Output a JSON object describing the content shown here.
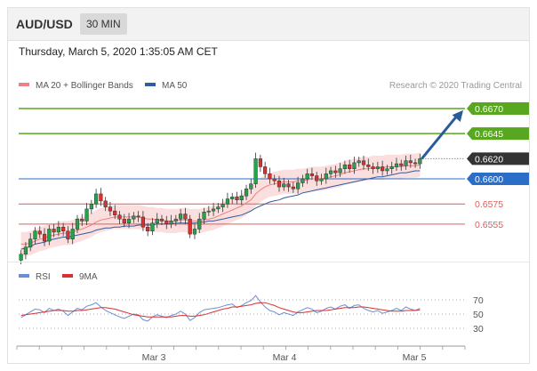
{
  "header": {
    "symbol": "AUD/USD",
    "timeframe": "30 MIN",
    "datetime": "Thursday, March 5, 2020 1:35:05 AM CET"
  },
  "legend": {
    "items": [
      {
        "label": "MA 20 + Bollinger Bands",
        "color": "#f08080"
      },
      {
        "label": "MA 50",
        "color": "#2f5c9e"
      }
    ],
    "credit": "Research © 2020 Trading Central"
  },
  "colors": {
    "up": "#27a14b",
    "down": "#d93030",
    "wick": "#333333",
    "resistance": "#59a620",
    "support": "#e45a5a",
    "pivot": "#2a6ec7",
    "current": "#333333",
    "band": "#fbdfdf",
    "ma20": "#f08080",
    "ma50": "#2f5c9e",
    "arrow": "#2a5c9a",
    "rsi": "#6a8fd6",
    "rsi_ma": "#d93030"
  },
  "chart_data": [
    {
      "type": "candlestick",
      "symbol": "AUD/USD",
      "timeframe": "30 MIN",
      "ylim": [
        0.6515,
        0.6685
      ],
      "x_ticks": [
        "Mar 3",
        "Mar 4",
        "Mar 5"
      ],
      "price_levels": [
        {
          "value": 0.667,
          "label": "0.6670",
          "kind": "resistance"
        },
        {
          "value": 0.6645,
          "label": "0.6645",
          "kind": "resistance"
        },
        {
          "value": 0.662,
          "label": "0.6620",
          "kind": "current"
        },
        {
          "value": 0.66,
          "label": "0.6600",
          "kind": "pivot"
        },
        {
          "value": 0.6575,
          "label": "0.6575",
          "kind": "support"
        },
        {
          "value": 0.6555,
          "label": "0.6555",
          "kind": "support"
        }
      ],
      "candles_close": [
        0.6525,
        0.6532,
        0.654,
        0.6548,
        0.6545,
        0.6538,
        0.655,
        0.6547,
        0.6552,
        0.6548,
        0.654,
        0.655,
        0.656,
        0.6558,
        0.657,
        0.6575,
        0.6585,
        0.6578,
        0.6572,
        0.6568,
        0.6564,
        0.656,
        0.6556,
        0.656,
        0.6563,
        0.6562,
        0.6552,
        0.6548,
        0.6556,
        0.656,
        0.6558,
        0.6555,
        0.6558,
        0.656,
        0.6565,
        0.656,
        0.6545,
        0.655,
        0.656,
        0.6567,
        0.6568,
        0.657,
        0.6572,
        0.6575,
        0.658,
        0.6582,
        0.6579,
        0.6583,
        0.659,
        0.6595,
        0.662,
        0.6612,
        0.6605,
        0.66,
        0.6598,
        0.6592,
        0.6595,
        0.6592,
        0.659,
        0.6596,
        0.66,
        0.6605,
        0.6603,
        0.6598,
        0.66,
        0.6605,
        0.6608,
        0.6606,
        0.661,
        0.6614,
        0.661,
        0.6616,
        0.6618,
        0.6614,
        0.6612,
        0.661,
        0.6612,
        0.6608,
        0.661,
        0.6612,
        0.6615,
        0.6613,
        0.6618,
        0.6616,
        0.6615,
        0.662
      ],
      "ma20": [
        0.6535,
        0.6535,
        0.6536,
        0.6538,
        0.654,
        0.6541,
        0.6543,
        0.6544,
        0.6545,
        0.6546,
        0.6546,
        0.6547,
        0.6549,
        0.655,
        0.6552,
        0.6554,
        0.6557,
        0.6559,
        0.656,
        0.6561,
        0.6562,
        0.6562,
        0.6562,
        0.6562,
        0.6562,
        0.6562,
        0.6561,
        0.656,
        0.656,
        0.6559,
        0.6559,
        0.6558,
        0.6558,
        0.6558,
        0.6559,
        0.6559,
        0.6558,
        0.6558,
        0.6558,
        0.6559,
        0.656,
        0.6561,
        0.6563,
        0.6565,
        0.6567,
        0.6569,
        0.6571,
        0.6573,
        0.6576,
        0.6579,
        0.6585,
        0.6589,
        0.6592,
        0.6594,
        0.6595,
        0.6596,
        0.6597,
        0.6597,
        0.6597,
        0.6598,
        0.6598,
        0.6599,
        0.66,
        0.66,
        0.66,
        0.6601,
        0.6602,
        0.6603,
        0.6604,
        0.6606,
        0.6607,
        0.6608,
        0.6609,
        0.661,
        0.661,
        0.6611,
        0.6611,
        0.6611,
        0.6612,
        0.6612,
        0.6612,
        0.6612,
        0.6613,
        0.6613,
        0.6613,
        0.6614
      ],
      "ma50": [
        0.653,
        0.6531,
        0.6533,
        0.6535,
        0.6536,
        0.6537,
        0.6539,
        0.654,
        0.6541,
        0.6542,
        0.6542,
        0.6543,
        0.6544,
        0.6545,
        0.6546,
        0.6547,
        0.6549,
        0.655,
        0.6551,
        0.6551,
        0.6552,
        0.6552,
        0.6553,
        0.6553,
        0.6553,
        0.6554,
        0.6554,
        0.6554,
        0.6554,
        0.6555,
        0.6555,
        0.6555,
        0.6555,
        0.6556,
        0.6556,
        0.6556,
        0.6556,
        0.6556,
        0.6557,
        0.6557,
        0.6558,
        0.6558,
        0.6559,
        0.656,
        0.6561,
        0.6562,
        0.6563,
        0.6564,
        0.6566,
        0.6568,
        0.6571,
        0.6573,
        0.6575,
        0.6577,
        0.6578,
        0.6579,
        0.6581,
        0.6582,
        0.6583,
        0.6584,
        0.6586,
        0.6587,
        0.6588,
        0.6589,
        0.659,
        0.6591,
        0.6592,
        0.6593,
        0.6594,
        0.6595,
        0.6596,
        0.6597,
        0.6598,
        0.6599,
        0.66,
        0.6601,
        0.6602,
        0.6602,
        0.6603,
        0.6604,
        0.6605,
        0.6606,
        0.6606,
        0.6607,
        0.6608,
        0.6608
      ],
      "band_width": 0.0012,
      "forecast_target": 0.667
    },
    {
      "type": "line",
      "legend": [
        {
          "label": "RSI",
          "color": "#6a8fd6"
        },
        {
          "label": "9MA",
          "color": "#d93030"
        }
      ],
      "ylim": [
        20,
        80
      ],
      "y_ticks": [
        70,
        50,
        30
      ],
      "rsi": [
        45,
        49,
        53,
        57,
        56,
        52,
        58,
        55,
        57,
        54,
        48,
        53,
        58,
        56,
        61,
        63,
        66,
        60,
        55,
        52,
        49,
        46,
        44,
        47,
        50,
        49,
        42,
        40,
        46,
        49,
        47,
        45,
        48,
        50,
        54,
        50,
        41,
        45,
        52,
        56,
        57,
        58,
        59,
        61,
        63,
        64,
        59,
        62,
        66,
        69,
        76,
        67,
        60,
        55,
        53,
        49,
        52,
        50,
        48,
        53,
        56,
        59,
        57,
        52,
        54,
        58,
        60,
        57,
        61,
        63,
        58,
        62,
        63,
        58,
        55,
        53,
        55,
        51,
        53,
        55,
        58,
        55,
        60,
        57,
        55,
        58
      ],
      "rsi_ma": [
        48,
        49,
        50,
        51,
        52,
        53,
        54,
        55,
        55,
        55,
        54,
        54,
        55,
        55,
        56,
        57,
        58,
        59,
        59,
        58,
        57,
        55,
        53,
        51,
        49,
        48,
        47,
        46,
        46,
        46,
        46,
        46,
        46,
        47,
        48,
        48,
        47,
        47,
        48,
        49,
        51,
        53,
        55,
        57,
        58,
        60,
        60,
        61,
        62,
        63,
        65,
        66,
        66,
        64,
        62,
        59,
        57,
        55,
        53,
        52,
        52,
        53,
        54,
        55,
        55,
        55,
        56,
        57,
        58,
        59,
        59,
        59,
        60,
        60,
        59,
        58,
        57,
        56,
        55,
        54,
        54,
        54,
        55,
        55,
        55,
        56
      ]
    }
  ]
}
